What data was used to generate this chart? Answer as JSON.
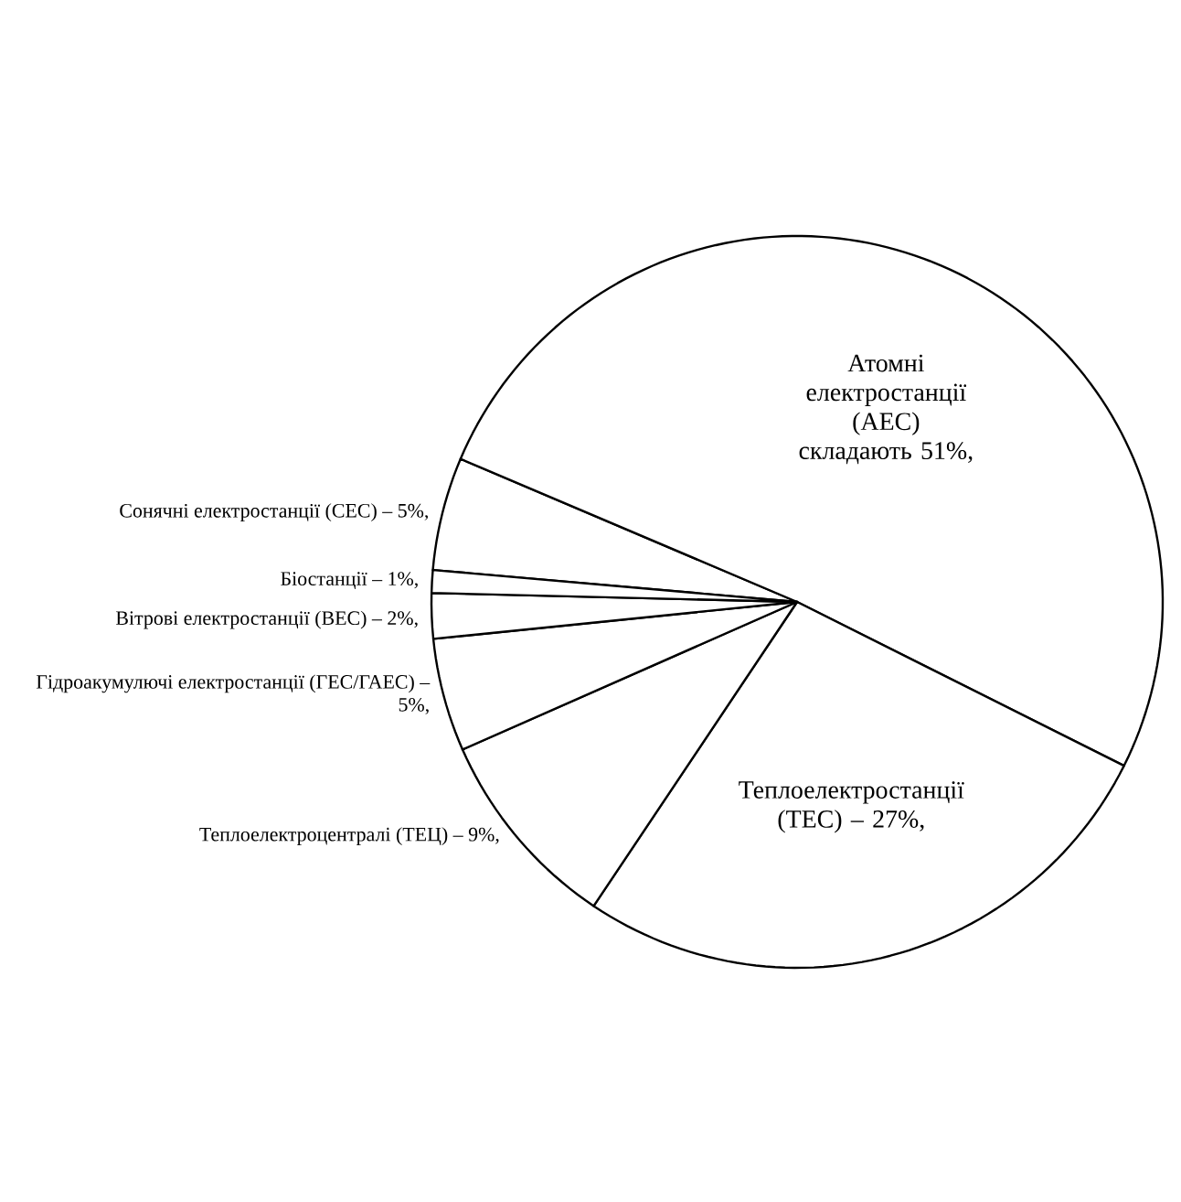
{
  "chart_data": {
    "type": "pie",
    "categories": [
      "Сонячні електростанції (СЕС) –",
      "Атомні електростанції (АЕС) складають",
      "Теплоелектростанції (ТЕС) –",
      "Теплоелектроцентралі (ТЕЦ) –",
      "Гідроакумулючі електростанції (ГЕС/ГАЕС) –",
      "Вітрові електростанції (ВЕС) –",
      "Біостанції –"
    ],
    "values": [
      5,
      51,
      27,
      9,
      5,
      2,
      1
    ],
    "value_labels": [
      "5%,",
      "51%,",
      "27%,",
      "9%,",
      "5%,",
      "2%,",
      "1%,"
    ],
    "colors": [
      "#ffffff",
      "#ffffff",
      "#ffffff",
      "#ffffff",
      "#ffffff",
      "#ffffff",
      "#ffffff"
    ]
  }
}
